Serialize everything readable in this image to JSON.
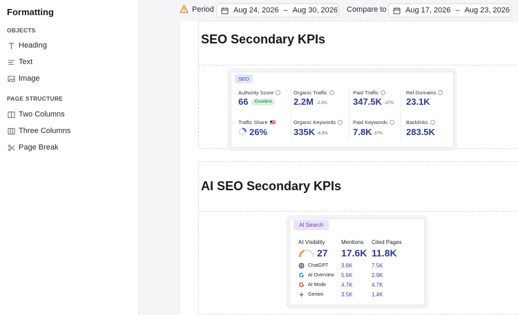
{
  "sidebar": {
    "title": "Formatting",
    "sections": [
      {
        "label": "OBJECTS",
        "items": [
          {
            "label": "Heading",
            "icon": "heading-icon"
          },
          {
            "label": "Text",
            "icon": "text-icon"
          },
          {
            "label": "Image",
            "icon": "image-icon"
          }
        ]
      },
      {
        "label": "PAGE STRUCTURE",
        "items": [
          {
            "label": "Two Columns",
            "icon": "two-columns-icon"
          },
          {
            "label": "Three Columns",
            "icon": "three-columns-icon"
          },
          {
            "label": "Page Break",
            "icon": "page-break-icon"
          }
        ]
      }
    ]
  },
  "toolbar": {
    "period_label": "Period",
    "period_start": "Aug 24, 2026",
    "period_end": "Aug 30, 2026",
    "compare_label": "Compare to",
    "compare_start": "Aug 17, 2026",
    "compare_end": "Aug 23, 2026",
    "separator": "–"
  },
  "seo_section": {
    "title": "SEO Secondary KPIs",
    "tag": "SEO",
    "kpis": {
      "authority_score": {
        "label": "Authority Score",
        "value": "66",
        "badge": "Excellent"
      },
      "organic_traffic": {
        "label": "Organic Traffic",
        "value": "2.2M",
        "delta": "-2.3%"
      },
      "paid_traffic": {
        "label": "Paid Traffic",
        "value": "347.5K",
        "delta": "-37%"
      },
      "ref_domains": {
        "label": "Ref.Domains",
        "value": "23.1K"
      },
      "traffic_share": {
        "label": "Traffic Share",
        "value": "26%"
      },
      "organic_keywords": {
        "label": "Organic Keywords",
        "value": "335K",
        "delta": "-6.9%"
      },
      "paid_keywords": {
        "label": "Paid Keywords",
        "value": "7.8K",
        "delta": "-37%"
      },
      "backlinks": {
        "label": "Backlinks",
        "value": "283.5K"
      }
    }
  },
  "ai_section": {
    "title": "AI SEO Secondary KPIs",
    "tag": "AI Search",
    "visibility_label": "AI Visibility",
    "visibility_value": "27",
    "mentions_label": "Mentions",
    "mentions_value": "17.6K",
    "cited_label": "Cited Pages",
    "cited_value": "11.8K",
    "rows": [
      {
        "label": "ChatGPT",
        "mentions": "3.8K",
        "cited": "7.5K",
        "icon": "chatgpt-icon"
      },
      {
        "label": "AI Overview",
        "mentions": "5.6K",
        "cited": "2.9K",
        "icon": "google-icon"
      },
      {
        "label": "AI Mode",
        "mentions": "4.7K",
        "cited": "4.7K",
        "icon": "google-icon"
      },
      {
        "label": "Gemini",
        "mentions": "3.5K",
        "cited": "1.4K",
        "icon": "gemini-icon"
      }
    ]
  },
  "colors": {
    "kpi_value": "#2e3a8c",
    "seo_tag_bg": "#e3e6fb",
    "ai_tag_bg": "#ece2fb",
    "badge_bg": "#d6f3e0",
    "warning": "#e8871e"
  }
}
